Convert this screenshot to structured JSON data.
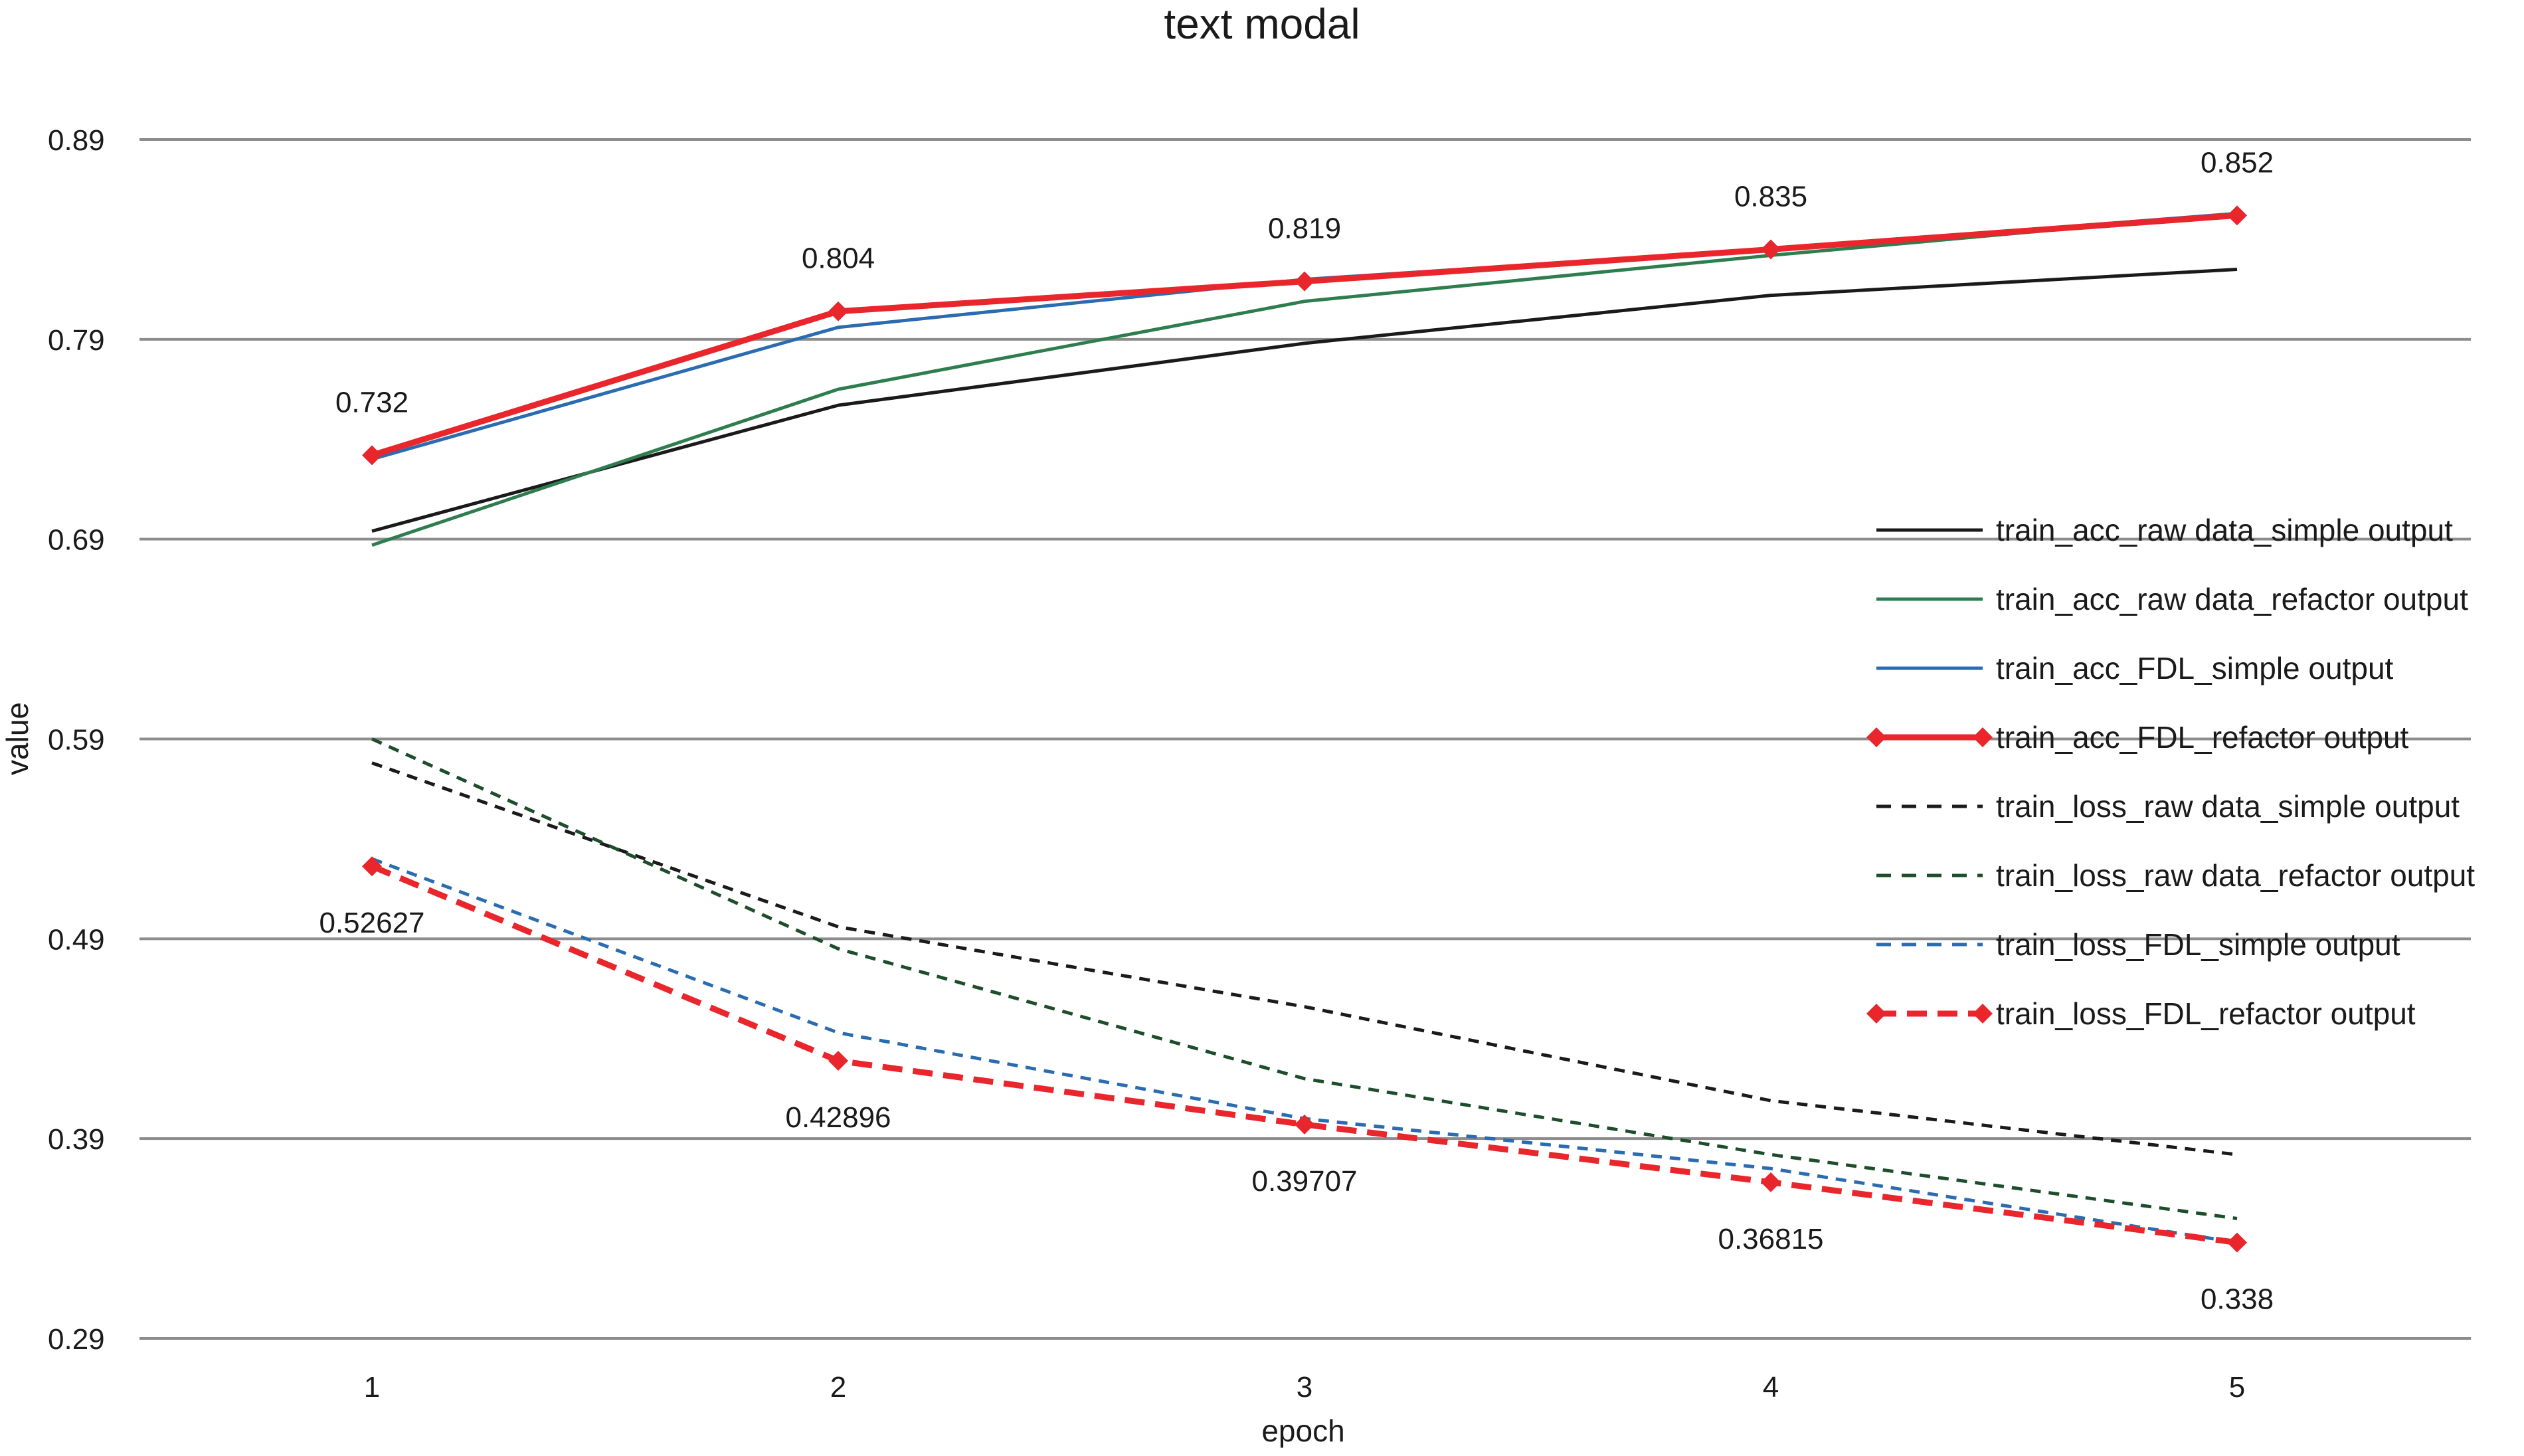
{
  "chart_data": {
    "type": "line",
    "title": "text modal",
    "xlabel": "epoch",
    "ylabel": "value",
    "x": [
      1,
      2,
      3,
      4,
      5
    ],
    "yticks": [
      "0.29",
      "0.39",
      "0.49",
      "0.59",
      "0.69",
      "0.79",
      "0.89"
    ],
    "ylim": [
      0.29,
      0.89
    ],
    "grid": "horizontal",
    "legend_position": "right",
    "series": [
      {
        "name": "train_acc_raw data_simple output",
        "values": [
          0.694,
          0.757,
          0.788,
          0.812,
          0.825
        ],
        "color": "#1a1a1a",
        "style": "solid",
        "marker": "none"
      },
      {
        "name": "train_acc_raw data_refactor output",
        "values": [
          0.687,
          0.765,
          0.809,
          0.832,
          0.853
        ],
        "color": "#2e7d4f",
        "style": "solid",
        "marker": "none"
      },
      {
        "name": "train_acc_FDL_simple output",
        "values": [
          0.73,
          0.796,
          0.82,
          0.835,
          0.853
        ],
        "color": "#2b6cb0",
        "style": "solid",
        "marker": "none"
      },
      {
        "name": "train_acc_FDL_refactor output",
        "values": [
          0.732,
          0.804,
          0.819,
          0.835,
          0.852
        ],
        "color": "#e8262c",
        "style": "solid",
        "marker": "diamond"
      },
      {
        "name": "train_loss_raw data_simple output",
        "values": [
          0.578,
          0.496,
          0.456,
          0.409,
          0.382
        ],
        "color": "#1a1a1a",
        "style": "dashed",
        "marker": "none"
      },
      {
        "name": "train_loss_raw data_refactor output",
        "values": [
          0.59,
          0.485,
          0.42,
          0.382,
          0.35
        ],
        "color": "#1e4d2b",
        "style": "dashed",
        "marker": "none"
      },
      {
        "name": "train_loss_FDL_simple output",
        "values": [
          0.53,
          0.443,
          0.4,
          0.375,
          0.338
        ],
        "color": "#2b6cb0",
        "style": "dashed",
        "marker": "none"
      },
      {
        "name": "train_loss_FDL_refactor output",
        "values": [
          0.52627,
          0.42896,
          0.39707,
          0.36815,
          0.338
        ],
        "color": "#e8262c",
        "style": "dashed",
        "marker": "diamond"
      }
    ],
    "data_labels": [
      {
        "x": 1,
        "y": 0.732,
        "text": "0.732",
        "position": "above"
      },
      {
        "x": 2,
        "y": 0.804,
        "text": "0.804",
        "position": "above"
      },
      {
        "x": 3,
        "y": 0.819,
        "text": "0.819",
        "position": "above"
      },
      {
        "x": 4,
        "y": 0.835,
        "text": "0.835",
        "position": "above"
      },
      {
        "x": 5,
        "y": 0.852,
        "text": "0.852",
        "position": "above"
      },
      {
        "x": 1,
        "y": 0.52627,
        "text": "0.52627",
        "position": "below"
      },
      {
        "x": 2,
        "y": 0.42896,
        "text": "0.42896",
        "position": "below"
      },
      {
        "x": 3,
        "y": 0.39707,
        "text": "0.39707",
        "position": "below"
      },
      {
        "x": 4,
        "y": 0.36815,
        "text": "0.36815",
        "position": "below"
      },
      {
        "x": 5,
        "y": 0.338,
        "text": "0.338",
        "position": "below"
      }
    ]
  }
}
